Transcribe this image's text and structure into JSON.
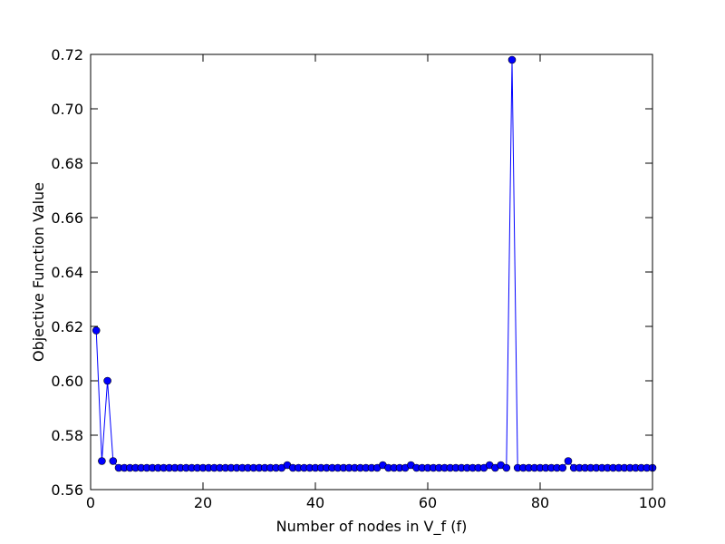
{
  "chart_data": {
    "type": "line",
    "title": "",
    "xlabel": "Number of nodes in V_f (f)",
    "ylabel": "Objective Function Value",
    "xlim": [
      0,
      100
    ],
    "ylim": [
      0.56,
      0.72
    ],
    "xticks": [
      0,
      20,
      40,
      60,
      80,
      100
    ],
    "xtick_labels": [
      "0",
      "20",
      "40",
      "60",
      "80",
      "100"
    ],
    "yticks": [
      0.56,
      0.58,
      0.6,
      0.62,
      0.64,
      0.66,
      0.68,
      0.7,
      0.72
    ],
    "ytick_labels": [
      "0.56",
      "0.58",
      "0.60",
      "0.62",
      "0.64",
      "0.66",
      "0.68",
      "0.70",
      "0.72"
    ],
    "grid": false,
    "legend": "none",
    "colors": {
      "series": "#0000ff",
      "axes": "#000000"
    },
    "series": [
      {
        "x": [
          1,
          2,
          3,
          4,
          5,
          6,
          7,
          8,
          9,
          10,
          11,
          12,
          13,
          14,
          15,
          16,
          17,
          18,
          19,
          20,
          21,
          22,
          23,
          24,
          25,
          26,
          27,
          28,
          29,
          30,
          31,
          32,
          33,
          34,
          35,
          36,
          37,
          38,
          39,
          40,
          41,
          42,
          43,
          44,
          45,
          46,
          47,
          48,
          49,
          50,
          51,
          52,
          53,
          54,
          55,
          56,
          57,
          58,
          59,
          60,
          61,
          62,
          63,
          64,
          65,
          66,
          67,
          68,
          69,
          70,
          71,
          72,
          73,
          74,
          75,
          76,
          77,
          78,
          79,
          80,
          81,
          82,
          83,
          84,
          85,
          86,
          87,
          88,
          89,
          90,
          91,
          92,
          93,
          94,
          95,
          96,
          97,
          98,
          99,
          100
        ],
        "values": [
          0.6185,
          0.5705,
          0.6,
          0.5705,
          0.568,
          0.568,
          0.568,
          0.568,
          0.568,
          0.568,
          0.568,
          0.568,
          0.568,
          0.568,
          0.568,
          0.568,
          0.568,
          0.568,
          0.568,
          0.568,
          0.568,
          0.568,
          0.568,
          0.568,
          0.568,
          0.568,
          0.568,
          0.568,
          0.568,
          0.568,
          0.568,
          0.568,
          0.568,
          0.568,
          0.569,
          0.568,
          0.568,
          0.568,
          0.568,
          0.568,
          0.568,
          0.568,
          0.568,
          0.568,
          0.568,
          0.568,
          0.568,
          0.568,
          0.568,
          0.568,
          0.568,
          0.569,
          0.568,
          0.568,
          0.568,
          0.568,
          0.569,
          0.568,
          0.568,
          0.568,
          0.568,
          0.568,
          0.568,
          0.568,
          0.568,
          0.568,
          0.568,
          0.568,
          0.568,
          0.568,
          0.569,
          0.568,
          0.569,
          0.568,
          0.718,
          0.568,
          0.568,
          0.568,
          0.568,
          0.568,
          0.568,
          0.568,
          0.568,
          0.568,
          0.5705,
          0.568,
          0.568,
          0.568,
          0.568,
          0.568,
          0.568,
          0.568,
          0.568,
          0.568,
          0.568,
          0.568,
          0.568,
          0.568,
          0.568,
          0.568
        ]
      }
    ]
  }
}
